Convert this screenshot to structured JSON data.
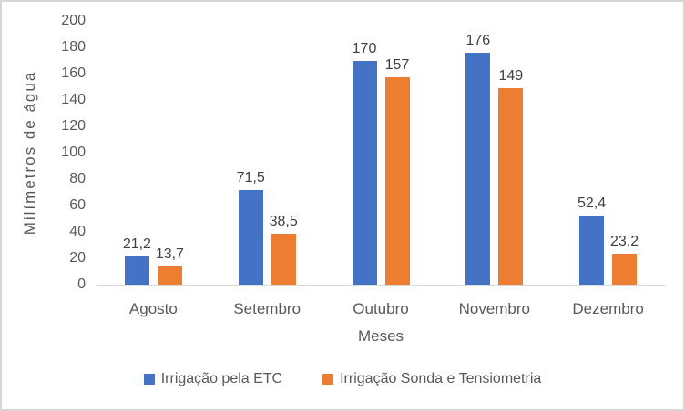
{
  "chart_data": {
    "type": "bar",
    "title": "",
    "xlabel": "Meses",
    "ylabel": "Milímetros de água",
    "ylim": [
      0,
      200
    ],
    "yticks": [
      0,
      20,
      40,
      60,
      80,
      100,
      120,
      140,
      160,
      180,
      200
    ],
    "categories": [
      "Agosto",
      "Setembro",
      "Outubro",
      "Novembro",
      "Dezembro"
    ],
    "series": [
      {
        "name": "Irrigação pela ETC",
        "color": "#4472C4",
        "values": [
          21.2,
          71.5,
          170,
          176,
          52.4
        ],
        "labels": [
          "21,2",
          "71,5",
          "170",
          "176",
          "52,4"
        ]
      },
      {
        "name": "Irrigação Sonda e Tensiometria",
        "color": "#ED7D31",
        "values": [
          13.7,
          38.5,
          157,
          149,
          23.2
        ],
        "labels": [
          "13,7",
          "38,5",
          "157",
          "149",
          "23,2"
        ]
      }
    ],
    "legend_position": "bottom",
    "grid": false
  },
  "style_colors": {
    "axis_line": "#D9D9D9",
    "axis_text": "#595959",
    "data_label_text": "#404040",
    "frame_border": "#D6D6D6",
    "background": "#FFFFFF"
  }
}
